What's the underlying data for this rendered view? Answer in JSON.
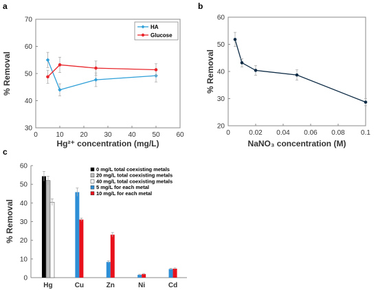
{
  "chart_data": [
    {
      "panel": "a",
      "type": "line",
      "xlabel": "Hg²⁺ concentration (mg/L)",
      "ylabel": "% Removal",
      "xlim": [
        0,
        60
      ],
      "ylim": [
        30,
        70
      ],
      "xticks": [
        0,
        10,
        20,
        30,
        40,
        50,
        60
      ],
      "yticks": [
        30,
        40,
        50,
        60,
        70
      ],
      "legend_position": "top-right",
      "series": [
        {
          "name": "HA",
          "color": "#2e9fd8",
          "marker": "diamond",
          "x": [
            5,
            10,
            25,
            50
          ],
          "y": [
            55,
            44,
            47.7,
            49.2
          ],
          "err": [
            2.8,
            2.2,
            2.5,
            2.3
          ]
        },
        {
          "name": "Glucose",
          "color": "#e8262b",
          "marker": "circle",
          "x": [
            5,
            10,
            25,
            50
          ],
          "y": [
            48.8,
            53.2,
            52,
            51.4
          ],
          "err": [
            2.4,
            2.8,
            2.6,
            2.2
          ]
        }
      ]
    },
    {
      "panel": "b",
      "type": "line",
      "xlabel": "NaNO₃ concentration (M)",
      "ylabel": "% Removal",
      "xlim": [
        0,
        0.1
      ],
      "ylim": [
        20,
        60
      ],
      "xticks": [
        0,
        0.02,
        0.04,
        0.06,
        0.08,
        0.1
      ],
      "xtick_labels": [
        "0",
        "0.02",
        "0.04",
        "0.06",
        "0.08",
        "0.1"
      ],
      "yticks": [
        20,
        30,
        40,
        50,
        60
      ],
      "series": [
        {
          "color": "#0d2b45",
          "marker": "circle",
          "x": [
            0.005,
            0.01,
            0.02,
            0.05,
            0.1
          ],
          "y": [
            51.8,
            43.2,
            40.4,
            38.7,
            28.7
          ],
          "err": [
            2.6,
            1.5,
            1.8,
            1.9,
            1.3
          ]
        }
      ]
    },
    {
      "panel": "c",
      "type": "bar",
      "ylabel": "% Removal",
      "ylim": [
        0,
        60
      ],
      "yticks": [
        0,
        10,
        20,
        30,
        40,
        50,
        60
      ],
      "categories": [
        "Hg",
        "Cu",
        "Zn",
        "Ni",
        "Cd"
      ],
      "legend_position": "top-right",
      "series": [
        {
          "name": "0 mg/L total coexisting metals",
          "color": "#000000",
          "values": [
            54.3,
            null,
            null,
            null,
            null
          ],
          "err": [
            2.6,
            null,
            null,
            null,
            null
          ]
        },
        {
          "name": "20 mg/L total coexisting metals",
          "color": "#bfbfbf",
          "values": [
            52,
            null,
            null,
            null,
            null
          ],
          "err": [
            2.3,
            null,
            null,
            null,
            null
          ]
        },
        {
          "name": "40 mg/L total coexisting metals",
          "color": "#ffffff",
          "values": [
            40.4,
            null,
            null,
            null,
            null
          ],
          "err": [
            1.8,
            null,
            null,
            null,
            null
          ]
        },
        {
          "name": "5 mg/L for each metal",
          "color": "#2e8fd6",
          "values": [
            null,
            45.8,
            8.4,
            1.5,
            4.6
          ],
          "err": [
            null,
            2.2,
            0.6,
            0.3,
            0.4
          ]
        },
        {
          "name": "10 mg/L for each metal",
          "color": "#e8101a",
          "values": [
            null,
            31.1,
            23,
            1.9,
            4.8
          ],
          "err": [
            null,
            0.8,
            1.2,
            0.3,
            0.4
          ]
        }
      ]
    }
  ],
  "panel_labels": {
    "a": "a",
    "b": "b",
    "c": "c"
  }
}
